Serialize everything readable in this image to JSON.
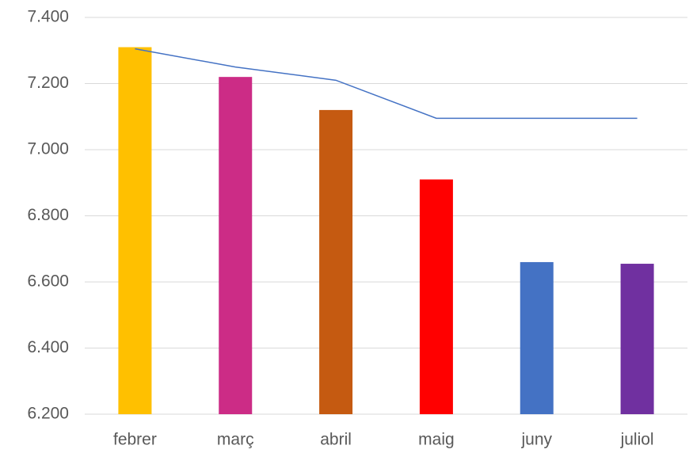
{
  "chart_data": {
    "type": "bar",
    "categories": [
      "febrer",
      "març",
      "abril",
      "maig",
      "juny",
      "juliol"
    ],
    "series": [
      {
        "type": "bar",
        "colors": [
          "#ffc000",
          "#cc2c86",
          "#c55a11",
          "#ff0000",
          "#4472c4",
          "#7030a0"
        ],
        "values": [
          7310,
          7220,
          7120,
          6910,
          6660,
          6655
        ]
      },
      {
        "type": "line",
        "color": "#4472c4",
        "values": [
          7305,
          7250,
          7210,
          7095,
          7095,
          7095
        ]
      }
    ],
    "ylim": [
      6200,
      7400
    ],
    "yticks": [
      {
        "value": 6200,
        "label": "6.200"
      },
      {
        "value": 6400,
        "label": "6.400"
      },
      {
        "value": 6600,
        "label": "6.600"
      },
      {
        "value": 6800,
        "label": "6.800"
      },
      {
        "value": 7000,
        "label": "7.000"
      },
      {
        "value": 7200,
        "label": "7.200"
      },
      {
        "value": 7400,
        "label": "7.400"
      }
    ],
    "grid": true
  }
}
